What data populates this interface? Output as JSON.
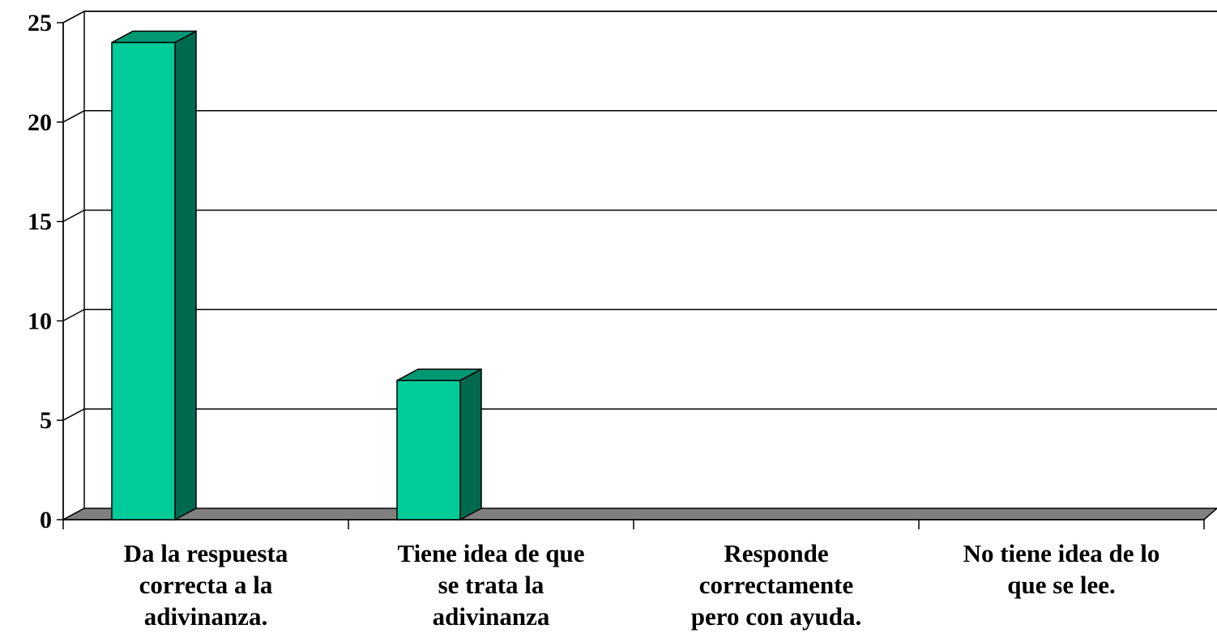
{
  "chart_data": {
    "type": "bar",
    "style": "3d-column",
    "categories": [
      [
        "Da la respuesta",
        "correcta a la",
        "adivinanza."
      ],
      [
        "Tiene idea de que",
        "se trata la",
        "adivinanza"
      ],
      [
        "Responde",
        "correctamente",
        "pero con ayuda."
      ],
      [
        "No tiene idea de lo",
        "que se lee."
      ]
    ],
    "values": [
      24,
      7,
      0,
      0
    ],
    "ylim": [
      0,
      25
    ],
    "yticks": [
      0,
      5,
      10,
      15,
      20,
      25
    ],
    "grid": true,
    "legend": "none",
    "colors": {
      "bar_front": "#00cc99",
      "bar_top": "#009974",
      "bar_side": "#006a50",
      "floor": "#808080",
      "gridline": "#000000"
    }
  }
}
